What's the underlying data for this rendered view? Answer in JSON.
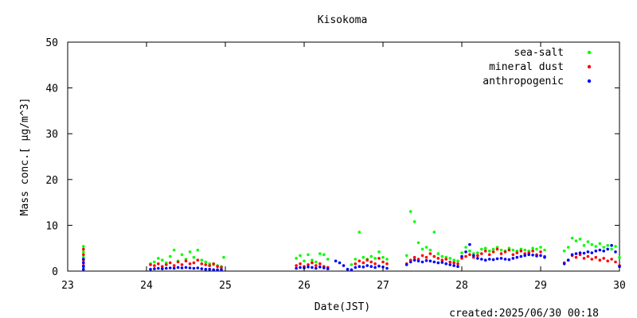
{
  "chart_data": {
    "type": "scatter",
    "title": "Kisokoma",
    "xlabel": "Date(JST)",
    "ylabel": "Mass conc.[ μg/m^3]",
    "xlim": [
      23,
      30
    ],
    "ylim": [
      0,
      50
    ],
    "x_ticks": [
      "23",
      "24",
      "25",
      "26",
      "27",
      "28",
      "29",
      "30"
    ],
    "y_ticks": [
      "0",
      "10",
      "20",
      "30",
      "40",
      "50"
    ],
    "grid": false,
    "legend_position": "top-right",
    "created_label": "created:2025/06/30 00:18",
    "series": [
      {
        "name": "sea-salt",
        "color": "#00ff00",
        "points": [
          [
            23.2,
            5.4
          ],
          [
            23.2,
            4.2
          ],
          [
            23.2,
            3.0
          ],
          [
            23.2,
            1.8
          ],
          [
            24.05,
            1.6
          ],
          [
            24.1,
            2.0
          ],
          [
            24.15,
            2.8
          ],
          [
            24.2,
            2.4
          ],
          [
            24.25,
            1.8
          ],
          [
            24.3,
            3.2
          ],
          [
            24.35,
            4.6
          ],
          [
            24.4,
            2.2
          ],
          [
            24.45,
            3.6
          ],
          [
            24.5,
            2.6
          ],
          [
            24.55,
            4.2
          ],
          [
            24.6,
            3.0
          ],
          [
            24.65,
            4.6
          ],
          [
            24.7,
            2.4
          ],
          [
            24.75,
            2.0
          ],
          [
            24.8,
            1.6
          ],
          [
            24.85,
            1.4
          ],
          [
            24.9,
            1.2
          ],
          [
            24.95,
            1.0
          ],
          [
            24.98,
            3.0
          ],
          [
            25.9,
            2.8
          ],
          [
            25.95,
            3.4
          ],
          [
            26.0,
            2.2
          ],
          [
            26.05,
            3.6
          ],
          [
            26.1,
            2.4
          ],
          [
            26.15,
            2.0
          ],
          [
            26.2,
            3.8
          ],
          [
            26.25,
            3.6
          ],
          [
            26.3,
            2.6
          ],
          [
            26.6,
            1.4
          ],
          [
            26.65,
            2.6
          ],
          [
            26.7,
            8.5
          ],
          [
            26.75,
            3.0
          ],
          [
            26.8,
            2.6
          ],
          [
            26.85,
            3.2
          ],
          [
            26.9,
            2.8
          ],
          [
            26.95,
            4.2
          ],
          [
            27.0,
            3.0
          ],
          [
            27.05,
            2.6
          ],
          [
            27.3,
            3.4
          ],
          [
            27.35,
            13.0
          ],
          [
            27.4,
            10.8
          ],
          [
            27.45,
            6.2
          ],
          [
            27.5,
            4.8
          ],
          [
            27.55,
            5.2
          ],
          [
            27.6,
            4.6
          ],
          [
            27.65,
            8.5
          ],
          [
            27.7,
            3.8
          ],
          [
            27.75,
            3.2
          ],
          [
            27.8,
            3.0
          ],
          [
            27.85,
            2.8
          ],
          [
            27.9,
            2.4
          ],
          [
            27.95,
            2.2
          ],
          [
            28.0,
            4.0
          ],
          [
            28.05,
            5.2
          ],
          [
            28.1,
            4.4
          ],
          [
            28.15,
            3.8
          ],
          [
            28.2,
            4.0
          ],
          [
            28.25,
            4.8
          ],
          [
            28.3,
            5.0
          ],
          [
            28.35,
            4.4
          ],
          [
            28.4,
            4.8
          ],
          [
            28.45,
            5.2
          ],
          [
            28.5,
            4.6
          ],
          [
            28.55,
            4.4
          ],
          [
            28.6,
            5.0
          ],
          [
            28.65,
            4.6
          ],
          [
            28.7,
            4.4
          ],
          [
            28.75,
            4.8
          ],
          [
            28.8,
            4.6
          ],
          [
            28.85,
            4.4
          ],
          [
            28.9,
            5.0
          ],
          [
            28.95,
            4.8
          ],
          [
            29.0,
            5.2
          ],
          [
            29.05,
            4.6
          ],
          [
            29.3,
            4.4
          ],
          [
            29.35,
            5.2
          ],
          [
            29.4,
            7.2
          ],
          [
            29.45,
            6.6
          ],
          [
            29.5,
            7.0
          ],
          [
            29.55,
            5.6
          ],
          [
            29.6,
            6.4
          ],
          [
            29.65,
            5.8
          ],
          [
            29.7,
            5.4
          ],
          [
            29.75,
            6.0
          ],
          [
            29.8,
            5.2
          ],
          [
            29.85,
            5.6
          ],
          [
            29.9,
            4.8
          ],
          [
            29.95,
            5.4
          ],
          [
            30.0,
            3.0
          ]
        ]
      },
      {
        "name": "mineral dust",
        "color": "#ff0000",
        "points": [
          [
            23.2,
            4.8
          ],
          [
            23.2,
            3.6
          ],
          [
            23.2,
            2.4
          ],
          [
            23.2,
            1.2
          ],
          [
            24.05,
            1.4
          ],
          [
            24.1,
            1.2
          ],
          [
            24.15,
            1.6
          ],
          [
            24.2,
            1.0
          ],
          [
            24.25,
            1.4
          ],
          [
            24.3,
            1.8
          ],
          [
            24.35,
            1.2
          ],
          [
            24.4,
            2.0
          ],
          [
            24.45,
            1.4
          ],
          [
            24.5,
            2.2
          ],
          [
            24.55,
            1.6
          ],
          [
            24.6,
            1.8
          ],
          [
            24.65,
            2.4
          ],
          [
            24.7,
            1.6
          ],
          [
            24.75,
            1.4
          ],
          [
            24.8,
            1.2
          ],
          [
            24.85,
            1.6
          ],
          [
            24.9,
            1.0
          ],
          [
            24.95,
            0.8
          ],
          [
            25.9,
            1.2
          ],
          [
            25.95,
            1.6
          ],
          [
            26.0,
            1.0
          ],
          [
            26.05,
            1.4
          ],
          [
            26.1,
            1.8
          ],
          [
            26.15,
            1.2
          ],
          [
            26.2,
            1.6
          ],
          [
            26.25,
            1.0
          ],
          [
            26.3,
            0.8
          ],
          [
            26.65,
            1.6
          ],
          [
            26.7,
            2.2
          ],
          [
            26.75,
            1.8
          ],
          [
            26.8,
            2.4
          ],
          [
            26.85,
            2.0
          ],
          [
            26.9,
            1.6
          ],
          [
            26.95,
            2.8
          ],
          [
            27.0,
            2.0
          ],
          [
            27.05,
            1.6
          ],
          [
            27.3,
            1.6
          ],
          [
            27.35,
            2.4
          ],
          [
            27.4,
            3.0
          ],
          [
            27.45,
            2.6
          ],
          [
            27.5,
            3.4
          ],
          [
            27.55,
            3.0
          ],
          [
            27.6,
            3.8
          ],
          [
            27.65,
            3.2
          ],
          [
            27.7,
            2.8
          ],
          [
            27.75,
            2.4
          ],
          [
            27.8,
            2.6
          ],
          [
            27.85,
            2.0
          ],
          [
            27.9,
            1.8
          ],
          [
            27.95,
            1.6
          ],
          [
            28.0,
            2.8
          ],
          [
            28.05,
            3.2
          ],
          [
            28.1,
            3.6
          ],
          [
            28.15,
            3.0
          ],
          [
            28.2,
            3.4
          ],
          [
            28.25,
            3.8
          ],
          [
            28.3,
            4.4
          ],
          [
            28.35,
            3.6
          ],
          [
            28.4,
            4.2
          ],
          [
            28.45,
            4.8
          ],
          [
            28.5,
            3.8
          ],
          [
            28.55,
            4.2
          ],
          [
            28.6,
            4.6
          ],
          [
            28.65,
            3.6
          ],
          [
            28.7,
            4.0
          ],
          [
            28.75,
            4.4
          ],
          [
            28.8,
            3.8
          ],
          [
            28.85,
            4.0
          ],
          [
            28.9,
            4.4
          ],
          [
            28.95,
            3.6
          ],
          [
            29.0,
            4.2
          ],
          [
            29.05,
            3.2
          ],
          [
            29.3,
            1.8
          ],
          [
            29.35,
            2.4
          ],
          [
            29.4,
            3.4
          ],
          [
            29.45,
            3.0
          ],
          [
            29.5,
            3.6
          ],
          [
            29.55,
            2.8
          ],
          [
            29.6,
            3.2
          ],
          [
            29.65,
            2.6
          ],
          [
            29.7,
            3.0
          ],
          [
            29.75,
            2.4
          ],
          [
            29.8,
            2.8
          ],
          [
            29.85,
            2.2
          ],
          [
            29.9,
            2.6
          ],
          [
            29.95,
            2.0
          ],
          [
            30.0,
            1.2
          ]
        ]
      },
      {
        "name": "anthropogenic",
        "color": "#0000ff",
        "points": [
          [
            23.2,
            2.6
          ],
          [
            23.2,
            1.8
          ],
          [
            23.2,
            1.0
          ],
          [
            23.2,
            0.4
          ],
          [
            24.05,
            0.4
          ],
          [
            24.1,
            0.5
          ],
          [
            24.15,
            0.6
          ],
          [
            24.2,
            0.5
          ],
          [
            24.25,
            0.6
          ],
          [
            24.3,
            0.7
          ],
          [
            24.35,
            0.6
          ],
          [
            24.4,
            0.8
          ],
          [
            24.45,
            0.7
          ],
          [
            24.5,
            0.8
          ],
          [
            24.55,
            0.7
          ],
          [
            24.6,
            0.6
          ],
          [
            24.65,
            0.7
          ],
          [
            24.7,
            0.5
          ],
          [
            24.75,
            0.4
          ],
          [
            24.8,
            0.4
          ],
          [
            24.85,
            0.3
          ],
          [
            24.9,
            0.3
          ],
          [
            24.95,
            0.3
          ],
          [
            25.9,
            0.6
          ],
          [
            25.95,
            0.8
          ],
          [
            26.0,
            0.7
          ],
          [
            26.05,
            0.9
          ],
          [
            26.1,
            0.8
          ],
          [
            26.15,
            0.6
          ],
          [
            26.2,
            0.9
          ],
          [
            26.25,
            0.7
          ],
          [
            26.3,
            0.5
          ],
          [
            26.4,
            2.2
          ],
          [
            26.45,
            1.8
          ],
          [
            26.5,
            1.2
          ],
          [
            26.55,
            0.4
          ],
          [
            26.6,
            0.3
          ],
          [
            26.65,
            0.8
          ],
          [
            26.7,
            1.0
          ],
          [
            26.75,
            0.9
          ],
          [
            26.8,
            1.2
          ],
          [
            26.85,
            1.0
          ],
          [
            26.9,
            0.8
          ],
          [
            26.95,
            1.1
          ],
          [
            27.0,
            0.9
          ],
          [
            27.05,
            0.6
          ],
          [
            27.3,
            1.4
          ],
          [
            27.35,
            2.0
          ],
          [
            27.4,
            2.4
          ],
          [
            27.45,
            2.2
          ],
          [
            27.5,
            2.0
          ],
          [
            27.55,
            2.3
          ],
          [
            27.6,
            2.2
          ],
          [
            27.65,
            2.0
          ],
          [
            27.7,
            1.8
          ],
          [
            27.75,
            1.9
          ],
          [
            27.8,
            1.6
          ],
          [
            27.85,
            1.4
          ],
          [
            27.9,
            1.2
          ],
          [
            27.95,
            1.0
          ],
          [
            28.0,
            3.2
          ],
          [
            28.05,
            4.2
          ],
          [
            28.1,
            5.8
          ],
          [
            28.15,
            3.4
          ],
          [
            28.2,
            2.8
          ],
          [
            28.25,
            2.6
          ],
          [
            28.3,
            2.4
          ],
          [
            28.35,
            2.6
          ],
          [
            28.4,
            2.5
          ],
          [
            28.45,
            2.7
          ],
          [
            28.5,
            2.8
          ],
          [
            28.55,
            2.6
          ],
          [
            28.6,
            2.5
          ],
          [
            28.65,
            2.8
          ],
          [
            28.7,
            3.0
          ],
          [
            28.75,
            3.2
          ],
          [
            28.8,
            3.4
          ],
          [
            28.85,
            3.6
          ],
          [
            28.9,
            3.5
          ],
          [
            28.95,
            3.3
          ],
          [
            29.0,
            3.4
          ],
          [
            29.05,
            3.0
          ],
          [
            29.3,
            1.6
          ],
          [
            29.35,
            2.4
          ],
          [
            29.4,
            3.6
          ],
          [
            29.45,
            3.8
          ],
          [
            29.5,
            4.0
          ],
          [
            29.55,
            3.9
          ],
          [
            29.6,
            4.2
          ],
          [
            29.65,
            4.0
          ],
          [
            29.7,
            4.4
          ],
          [
            29.75,
            4.6
          ],
          [
            29.8,
            4.4
          ],
          [
            29.85,
            4.8
          ],
          [
            29.9,
            5.6
          ],
          [
            29.95,
            4.2
          ],
          [
            30.0,
            1.0
          ]
        ]
      }
    ]
  }
}
